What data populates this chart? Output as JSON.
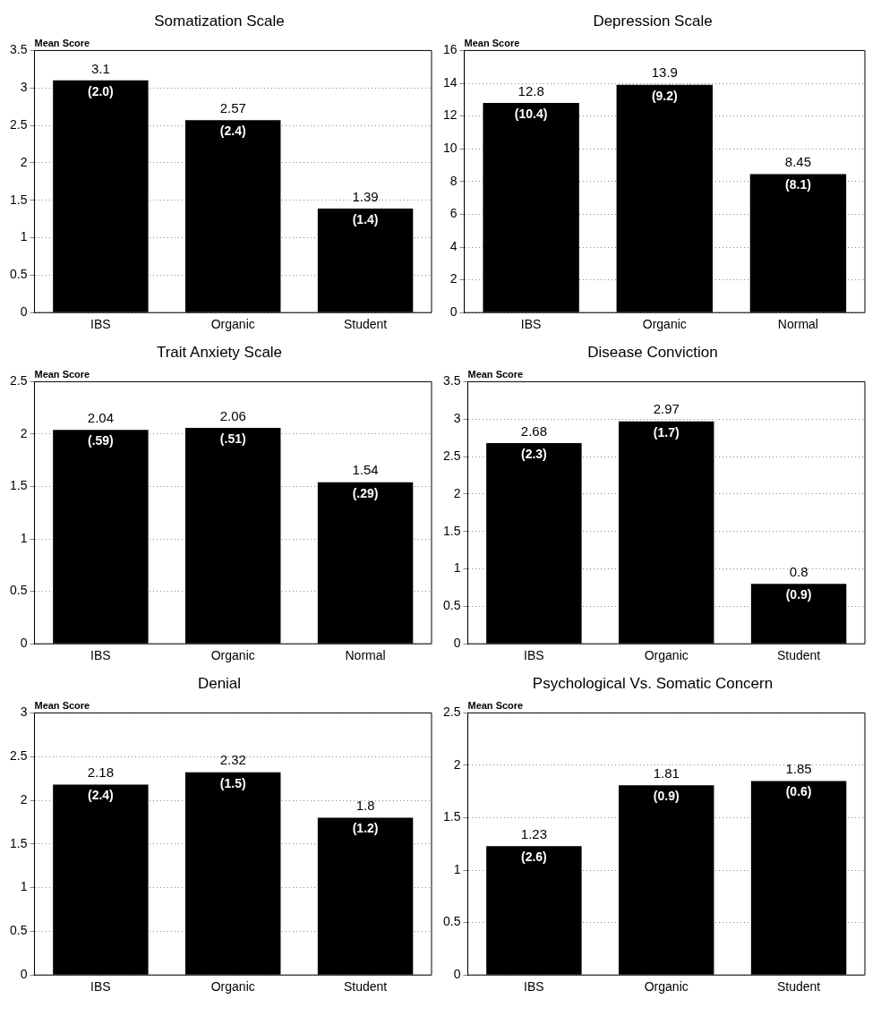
{
  "chart_data": [
    {
      "type": "bar",
      "title": "Somatization Scale",
      "ylabel": "Mean Score",
      "categories": [
        "IBS",
        "Organic",
        "Student"
      ],
      "values": [
        3.1,
        2.57,
        1.39
      ],
      "color": "#000000",
      "ylim": [
        0,
        3.5
      ],
      "yticks": [
        0,
        0.5,
        1,
        1.5,
        2,
        2.5,
        3,
        3.5
      ],
      "grid": "y",
      "data_labels": true,
      "annotations": [
        {
          "text": "(2.0)",
          "x": "IBS",
          "y": 3.1
        },
        {
          "text": "(2.4)",
          "x": "Organic",
          "y": 2.57
        },
        {
          "text": "(1.4)",
          "x": "Student",
          "y": 1.39
        }
      ]
    },
    {
      "type": "bar",
      "title": "Depression Scale",
      "ylabel": "Mean Score",
      "categories": [
        "IBS",
        "Organic",
        "Normal"
      ],
      "values": [
        12.8,
        13.9,
        8.45
      ],
      "color": "#000000",
      "ylim": [
        0,
        16
      ],
      "yticks": [
        0,
        2,
        4,
        6,
        8,
        10,
        12,
        14,
        16
      ],
      "grid": "y",
      "data_labels": true,
      "annotations": [
        {
          "text": "(10.4)",
          "x": "IBS",
          "y": 12.8
        },
        {
          "text": "(9.2)",
          "x": "Organic",
          "y": 13.9
        },
        {
          "text": "(8.1)",
          "x": "Normal",
          "y": 8.45
        }
      ]
    },
    {
      "type": "bar",
      "title": "Trait Anxiety Scale",
      "ylabel": "Mean Score",
      "categories": [
        "IBS",
        "Organic",
        "Normal"
      ],
      "values": [
        2.04,
        2.06,
        1.54
      ],
      "color": "#000000",
      "ylim": [
        0,
        2.5
      ],
      "yticks": [
        0,
        0.5,
        1,
        1.5,
        2,
        2.5
      ],
      "grid": "y",
      "data_labels": true,
      "annotations": [
        {
          "text": "(.59)",
          "x": "IBS",
          "y": 2.04
        },
        {
          "text": "(.51)",
          "x": "Organic",
          "y": 2.06
        },
        {
          "text": "(.29)",
          "x": "Normal",
          "y": 1.54
        }
      ]
    },
    {
      "type": "bar",
      "title": "Disease Conviction",
      "ylabel": "Mean Score",
      "categories": [
        "IBS",
        "Organic",
        "Student"
      ],
      "values": [
        2.68,
        2.97,
        0.8
      ],
      "color": "#000000",
      "ylim": [
        0,
        3.5
      ],
      "yticks": [
        0,
        0.5,
        1,
        1.5,
        2,
        2.5,
        3,
        3.5
      ],
      "grid": "y",
      "data_labels": true,
      "annotations": [
        {
          "text": "(2.3)",
          "x": "IBS",
          "y": 2.68
        },
        {
          "text": "(1.7)",
          "x": "Organic",
          "y": 2.97
        },
        {
          "text": "(0.9)",
          "x": "Student",
          "y": 0.8
        }
      ]
    },
    {
      "type": "bar",
      "title": "Denial",
      "ylabel": "Mean Score",
      "categories": [
        "IBS",
        "Organic",
        "Student"
      ],
      "values": [
        2.18,
        2.32,
        1.8
      ],
      "color": "#000000",
      "ylim": [
        0,
        3
      ],
      "yticks": [
        0,
        0.5,
        1,
        1.5,
        2,
        2.5,
        3
      ],
      "grid": "y",
      "data_labels": true,
      "annotations": [
        {
          "text": "(2.4)",
          "x": "IBS",
          "y": 2.18
        },
        {
          "text": "(1.5)",
          "x": "Organic",
          "y": 2.32
        },
        {
          "text": "(1.2)",
          "x": "Student",
          "y": 1.8
        }
      ]
    },
    {
      "type": "bar",
      "title": "Psychological Vs. Somatic Concern",
      "ylabel": "Mean Score",
      "categories": [
        "IBS",
        "Organic",
        "Student"
      ],
      "values": [
        1.23,
        1.81,
        1.85
      ],
      "color": "#000000",
      "ylim": [
        0,
        2.5
      ],
      "yticks": [
        0,
        0.5,
        1,
        1.5,
        2,
        2.5
      ],
      "grid": "y",
      "data_labels": true,
      "annotations": [
        {
          "text": "(2.6)",
          "x": "IBS",
          "y": 1.23
        },
        {
          "text": "(0.9)",
          "x": "Organic",
          "y": 1.81
        },
        {
          "text": "(0.6)",
          "x": "Student",
          "y": 1.85
        }
      ]
    }
  ]
}
